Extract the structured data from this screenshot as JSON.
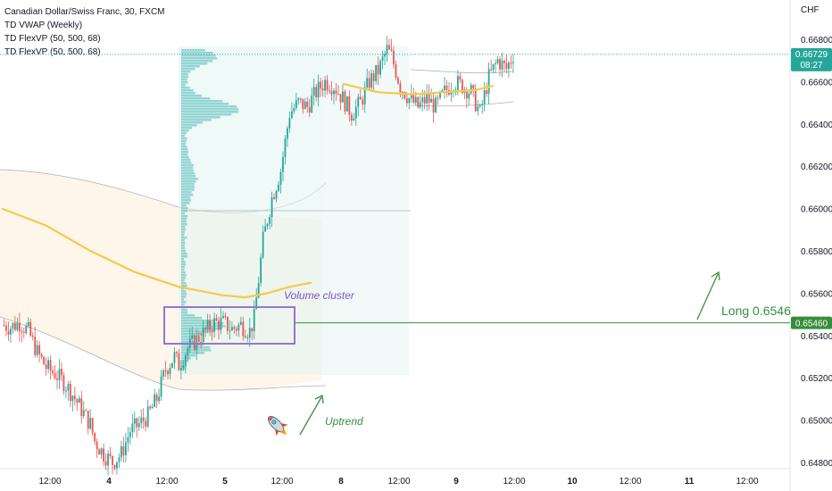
{
  "legend": {
    "title": "Canadian Dollar/Swiss Franc, 30, FXCM",
    "vwap": "TD VWAP (Weekly)",
    "vp1": "TD FlexVP (50, 500, 68)",
    "vp2": "TD FlexVP (50, 500, 68)"
  },
  "currency_label": "CHF",
  "price_tag": {
    "price": "0.66729",
    "countdown": "08:27",
    "color": "#26a69a"
  },
  "level_tag": {
    "price": "0.65460",
    "color": "#388e3c"
  },
  "annotations": {
    "volume_cluster": "Volume cluster",
    "long_label": "Long 0.6546",
    "uptrend": "Uptrend"
  },
  "chart_data": {
    "type": "candlestick",
    "title": "Canadian Dollar/Swiss Franc, 30, FXCM",
    "ylabel": "CHF",
    "ylim": [
      0.6477,
      0.6697
    ],
    "y_ticks": [
      "0.66800",
      "0.66600",
      "0.66400",
      "0.66200",
      "0.66000",
      "0.65800",
      "0.65600",
      "0.65400",
      "0.65200",
      "0.65000",
      "0.64800"
    ],
    "x_ticks": [
      "12:00",
      "4",
      "12:00",
      "5",
      "12:00",
      "8",
      "12:00",
      "9",
      "12:00",
      "10",
      "12:00",
      "11",
      "12:00"
    ],
    "last_price": 0.66729,
    "horizontal_level": 0.6546,
    "grid": false,
    "colors": {
      "up": "#26a69a",
      "down": "#ef5350",
      "vwap": "#f7c948",
      "profile": "#7fcdc9",
      "box": "#9575cd",
      "level": "#388e3c"
    },
    "price_path": [
      [
        0,
        0.6545
      ],
      [
        4,
        0.6544
      ],
      [
        8,
        0.6546
      ],
      [
        12,
        0.6542
      ],
      [
        16,
        0.6532
      ],
      [
        20,
        0.6525
      ],
      [
        24,
        0.6522
      ],
      [
        28,
        0.6518
      ],
      [
        32,
        0.6512
      ],
      [
        36,
        0.6505
      ],
      [
        40,
        0.6498
      ],
      [
        42,
        0.649
      ],
      [
        46,
        0.6484
      ],
      [
        50,
        0.648
      ],
      [
        54,
        0.6484
      ],
      [
        58,
        0.6495
      ],
      [
        62,
        0.6498
      ],
      [
        66,
        0.6502
      ],
      [
        70,
        0.651
      ],
      [
        74,
        0.6524
      ],
      [
        78,
        0.653
      ],
      [
        80,
        0.6526
      ],
      [
        84,
        0.6534
      ],
      [
        88,
        0.6538
      ],
      [
        92,
        0.6542
      ],
      [
        96,
        0.6546
      ],
      [
        100,
        0.6546
      ],
      [
        104,
        0.6543
      ],
      [
        108,
        0.6545
      ],
      [
        112,
        0.6542
      ],
      [
        114,
        0.6548
      ],
      [
        118,
        0.6585
      ],
      [
        122,
        0.6605
      ],
      [
        126,
        0.6618
      ],
      [
        130,
        0.6645
      ],
      [
        134,
        0.665
      ],
      [
        138,
        0.6648
      ],
      [
        142,
        0.6655
      ],
      [
        146,
        0.666
      ],
      [
        150,
        0.6658
      ],
      [
        154,
        0.6652
      ],
      [
        158,
        0.6645
      ],
      [
        162,
        0.665
      ],
      [
        166,
        0.666
      ],
      [
        170,
        0.6665
      ],
      [
        174,
        0.6675
      ],
      [
        176,
        0.6672
      ],
      [
        180,
        0.6658
      ],
      [
        184,
        0.6652
      ],
      [
        188,
        0.6648
      ],
      [
        192,
        0.6652
      ],
      [
        196,
        0.6648
      ],
      [
        200,
        0.6655
      ],
      [
        204,
        0.666
      ],
      [
        208,
        0.6658
      ],
      [
        212,
        0.6655
      ],
      [
        216,
        0.6645
      ],
      [
        220,
        0.6662
      ],
      [
        224,
        0.667
      ],
      [
        228,
        0.6666
      ],
      [
        231,
        0.66729
      ]
    ],
    "vwap_line": [
      [
        0,
        0.66
      ],
      [
        20,
        0.6592
      ],
      [
        40,
        0.658
      ],
      [
        60,
        0.657
      ],
      [
        80,
        0.6563
      ],
      [
        100,
        0.6559
      ],
      [
        110,
        0.6558
      ],
      [
        120,
        0.656
      ],
      [
        130,
        0.6563
      ],
      [
        140,
        0.6565
      ]
    ],
    "vwap_line_2": [
      [
        154,
        0.6659
      ],
      [
        170,
        0.6655
      ],
      [
        186,
        0.6654
      ],
      [
        200,
        0.6655
      ],
      [
        214,
        0.6656
      ],
      [
        222,
        0.6658
      ]
    ]
  }
}
